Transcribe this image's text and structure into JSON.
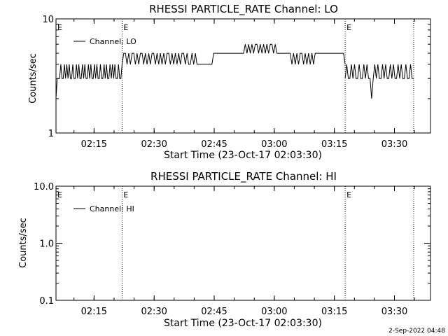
{
  "colors": {
    "background": "#ffffff",
    "foreground": "#000000"
  },
  "footer": {
    "date_stamp": "2-Sep-2022 04:48"
  },
  "chart_data": [
    {
      "type": "line",
      "title": "RHESSI PARTICLE_RATE Channel: LO",
      "xlabel": "Start Time (23-Oct-17 02:03:30)",
      "ylabel": "Counts/sec",
      "yscale": "log",
      "xlim_minutes_after_02_00": [
        5.5,
        47.0
      ],
      "ylim": [
        1,
        10
      ],
      "x_ticks": [
        {
          "t": 15,
          "label": "02:15"
        },
        {
          "t": 30,
          "label": "02:30"
        },
        {
          "t": 45,
          "label": "02:45"
        },
        {
          "t": 60,
          "label": "03:00"
        },
        {
          "t": 75,
          "label": "03:15"
        },
        {
          "t": 90,
          "label": "03:30"
        }
      ],
      "y_ticks": [
        {
          "v": 1,
          "label": "1"
        },
        {
          "v": 10,
          "label": "10"
        }
      ],
      "legend": {
        "entries": [
          "Channel: LO"
        ],
        "placement": "top-left"
      },
      "event_markers": [
        {
          "t": 22.0,
          "label": "E"
        },
        {
          "t": 77.7,
          "label": "E"
        },
        {
          "t": 94.8,
          "label": ""
        }
      ],
      "series": [
        {
          "name": "Channel: LO",
          "segments": [
            {
              "t_start": 5.5,
              "t_end": 22.0,
              "levels": [
                2,
                3,
                3,
                3,
                4,
                3,
                3,
                4,
                3,
                4,
                3,
                4,
                3,
                3,
                4,
                3,
                3,
                4,
                3,
                4,
                3,
                3,
                4,
                3,
                4,
                3,
                3,
                4,
                3,
                4,
                3,
                3,
                4,
                3,
                4,
                3,
                3,
                4,
                3,
                3,
                4,
                3,
                4,
                3,
                3,
                4,
                3,
                4,
                3,
                4,
                3,
                3,
                4,
                3,
                3,
                4
              ]
            },
            {
              "t_start": 22.0,
              "t_end": 77.7,
              "levels": [
                4,
                5,
                5,
                4,
                5,
                4,
                5,
                5,
                4,
                5,
                4,
                5,
                5,
                4,
                5,
                4,
                5,
                4,
                5,
                5,
                4,
                5,
                4,
                5,
                4,
                5,
                4,
                5,
                5,
                4,
                5,
                4,
                5,
                4,
                5,
                4,
                5,
                5,
                4,
                5,
                4,
                4,
                5,
                4,
                5,
                4,
                4,
                4,
                4,
                4,
                4,
                4,
                4,
                4,
                4,
                5,
                5,
                5,
                5,
                5,
                5,
                5,
                5,
                5,
                5,
                5,
                5,
                5,
                5,
                5,
                5,
                5,
                5,
                5,
                6,
                5,
                6,
                5,
                6,
                5,
                6,
                6,
                5,
                6,
                5,
                6,
                5,
                6,
                5,
                6,
                6,
                5,
                6,
                5,
                5,
                5,
                5,
                5,
                5,
                5,
                5,
                5,
                4,
                5,
                4,
                5,
                4,
                5,
                5,
                4,
                5,
                4,
                5,
                4,
                5,
                4,
                5,
                5,
                5,
                5,
                5,
                5,
                5,
                5,
                5,
                5,
                5,
                5,
                5,
                5,
                5,
                5,
                5,
                5,
                4
              ]
            },
            {
              "t_start": 77.7,
              "t_end": 94.8,
              "levels": [
                3,
                4,
                3,
                3,
                4,
                3,
                4,
                3,
                3,
                4,
                3,
                3,
                4,
                3,
                4,
                3,
                3,
                2,
                3,
                4,
                3,
                4,
                3,
                3,
                4,
                3,
                4,
                3,
                3,
                4,
                3,
                4,
                3,
                3,
                4,
                3,
                4,
                3,
                3,
                4,
                3,
                3,
                4,
                3,
                3
              ]
            }
          ]
        }
      ]
    },
    {
      "type": "line",
      "title": "RHESSI PARTICLE_RATE Channel: HI",
      "xlabel": "Start Time (23-Oct-17 02:03:30)",
      "ylabel": "Counts/sec",
      "yscale": "log",
      "xlim_minutes_after_02_00": [
        5.5,
        47.0
      ],
      "ylim": [
        0.1,
        10
      ],
      "x_ticks": [
        {
          "t": 15,
          "label": "02:15"
        },
        {
          "t": 30,
          "label": "02:30"
        },
        {
          "t": 45,
          "label": "02:45"
        },
        {
          "t": 60,
          "label": "03:00"
        },
        {
          "t": 75,
          "label": "03:15"
        },
        {
          "t": 90,
          "label": "03:30"
        }
      ],
      "y_ticks": [
        {
          "v": 0.1,
          "label": "0.1"
        },
        {
          "v": 1,
          "label": "1.0"
        },
        {
          "v": 10,
          "label": "10.0"
        }
      ],
      "legend": {
        "entries": [
          "Channel: HI"
        ],
        "placement": "top-left"
      },
      "event_markers": [
        {
          "t": 22.0,
          "label": "E"
        },
        {
          "t": 77.7,
          "label": "E"
        },
        {
          "t": 94.8,
          "label": ""
        }
      ],
      "series": [
        {
          "name": "Channel: HI",
          "segments": []
        }
      ]
    }
  ]
}
